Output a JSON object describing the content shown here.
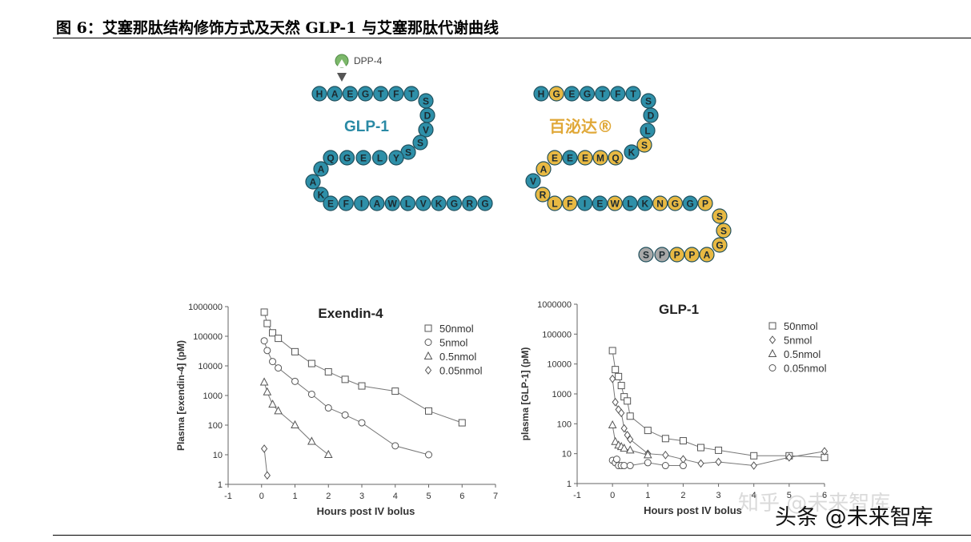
{
  "figure_title": "图 6：艾塞那肽结构修饰方式及天然 GLP-1 与艾塞那肽代谢曲线",
  "diagram": {
    "enzyme_label": "DPP-4",
    "glp1_label": "GLP-1",
    "exenatide_label": "百泌达®",
    "colors": {
      "teal": "#2e8fa8",
      "gold": "#e8b943",
      "grey": "#a8a8a8",
      "glp1_text": "#2a8aa5",
      "exenatide_text": "#e0a838",
      "enzyme": "#7cb86a"
    },
    "glp1_sequence": "HAEGTFTSDVSSYLEGQAAKEFIAWLVKGRG",
    "exenatide_sequence": "HGEGTFTSDLSKQMEEEAVRLFIEWLKNGGPSSGAPPPS",
    "exenatide_residue_colors": "tgttttttttgtgggtggtgggttgttggtgggggggxx"
  },
  "watermarks": [
    "知乎 @未来智库",
    "头条 @未来智库"
  ],
  "chart_data": [
    {
      "type": "scatter",
      "title": "Exendin-4",
      "xlabel": "Hours post IV bolus",
      "ylabel": "Plasma [exendin-4] (pM)",
      "xlim": [
        -1,
        7
      ],
      "xticks": [
        "-1",
        "0",
        "1",
        "2",
        "3",
        "4",
        "5",
        "6",
        "7"
      ],
      "ylim": [
        1,
        1000000
      ],
      "yscale": "log",
      "yticks": [
        "1",
        "10",
        "100",
        "1000",
        "10000",
        "100000",
        "1000000"
      ],
      "legend_position": "top-right",
      "series": [
        {
          "name": "50nmol",
          "marker": "square",
          "x": [
            0.08,
            0.17,
            0.33,
            0.5,
            1,
            1.5,
            2,
            2.5,
            3,
            4,
            5,
            6
          ],
          "y": [
            650000,
            270000,
            130000,
            85000,
            30000,
            12000,
            6300,
            3500,
            2100,
            1400,
            300,
            120
          ]
        },
        {
          "name": "5nmol",
          "marker": "circle",
          "x": [
            0.08,
            0.17,
            0.33,
            0.5,
            1,
            1.5,
            2,
            2.5,
            3,
            4,
            5
          ],
          "y": [
            70000,
            33000,
            14000,
            8500,
            3000,
            1100,
            380,
            220,
            120,
            20,
            10
          ]
        },
        {
          "name": "0.5nmol",
          "marker": "triangle",
          "x": [
            0.08,
            0.17,
            0.33,
            0.5,
            1,
            1.5,
            2
          ],
          "y": [
            2800,
            1300,
            500,
            300,
            100,
            28,
            10
          ]
        },
        {
          "name": "0.05nmol",
          "marker": "diamond",
          "x": [
            0.08,
            0.17
          ],
          "y": [
            16,
            2
          ]
        }
      ]
    },
    {
      "type": "scatter",
      "title": "GLP-1",
      "xlabel": "Hours post IV bolus",
      "ylabel": "plasma [GLP-1] (pM)",
      "xlim": [
        -1,
        6
      ],
      "xticks": [
        "-1",
        "0",
        "1",
        "2",
        "3",
        "4",
        "5",
        "6"
      ],
      "ylim": [
        1,
        1000000
      ],
      "yscale": "log",
      "yticks": [
        "1",
        "10",
        "100",
        "1000",
        "10000",
        "100000",
        "1000000"
      ],
      "legend_position": "top-right",
      "series": [
        {
          "name": "50nmol",
          "marker": "square",
          "x": [
            0,
            0.08,
            0.17,
            0.25,
            0.33,
            0.42,
            0.5,
            1,
            1.5,
            2,
            2.5,
            3,
            4,
            5,
            6
          ],
          "y": [
            28000,
            6500,
            3800,
            1900,
            800,
            580,
            180,
            60,
            32,
            27,
            16,
            13,
            8.5,
            8.5,
            7.5
          ]
        },
        {
          "name": "5nmol",
          "marker": "diamond",
          "x": [
            0,
            0.08,
            0.17,
            0.25,
            0.33,
            0.42,
            0.5,
            1,
            1.5,
            2,
            2.5,
            3,
            4,
            5,
            6
          ],
          "y": [
            3200,
            530,
            300,
            230,
            70,
            42,
            30,
            10,
            9,
            6.5,
            4.7,
            5.3,
            4,
            7.5,
            12
          ]
        },
        {
          "name": "0.5nmol",
          "marker": "triangle",
          "x": [
            0,
            0.08,
            0.17,
            0.25,
            0.33,
            0.5,
            1
          ],
          "y": [
            90,
            25,
            19,
            17,
            15,
            13,
            9
          ]
        },
        {
          "name": "0.05nmol",
          "marker": "circle",
          "x": [
            0,
            0.08,
            0.12,
            0.17,
            0.25,
            0.33,
            0.5,
            1,
            1.5,
            2
          ],
          "y": [
            6,
            5,
            6.5,
            4,
            4,
            4,
            4,
            5,
            4,
            4
          ]
        }
      ]
    }
  ]
}
